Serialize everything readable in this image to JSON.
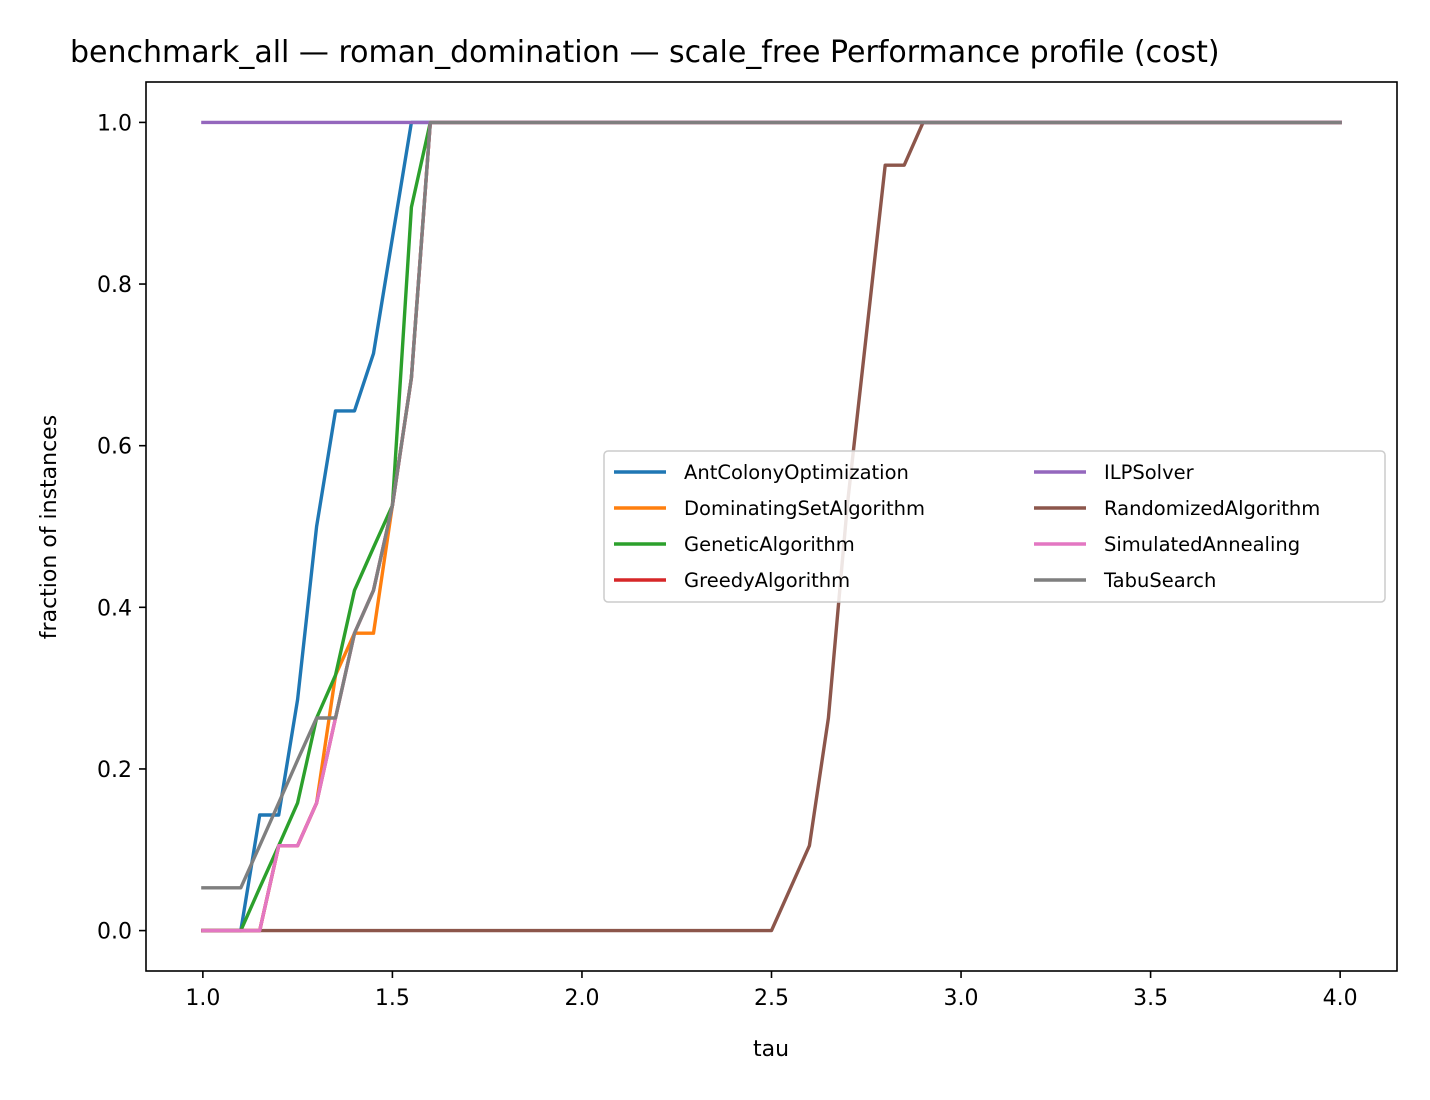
{
  "chart_data": {
    "type": "line",
    "title": "benchmark_all — roman_domination — scale_free Performance profile (cost)",
    "xlabel": "tau",
    "ylabel": "fraction of instances",
    "xlim": [
      0.85,
      4.15
    ],
    "ylim": [
      -0.05,
      1.05
    ],
    "xticks": [
      "1.0",
      "1.5",
      "2.0",
      "2.5",
      "3.0",
      "3.5",
      "4.0"
    ],
    "yticks": [
      "0.0",
      "0.2",
      "0.4",
      "0.6",
      "0.8",
      "1.0"
    ],
    "grid": false,
    "legend_position": "center-right",
    "legend_columns": 2,
    "series": [
      {
        "name": "AntColonyOptimization",
        "color": "#1f77b4",
        "x": [
          1.0,
          1.1,
          1.15,
          1.2,
          1.25,
          1.3,
          1.35,
          1.4,
          1.45,
          1.5,
          1.55,
          4.0
        ],
        "y": [
          0.0,
          0.0,
          0.143,
          0.143,
          0.286,
          0.5,
          0.643,
          0.643,
          0.714,
          0.857,
          1.0,
          1.0
        ]
      },
      {
        "name": "DominatingSetAlgorithm",
        "color": "#ff7f0e",
        "x": [
          1.0,
          1.15,
          1.2,
          1.25,
          1.3,
          1.35,
          1.4,
          1.45,
          1.5,
          1.55,
          1.6,
          4.0
        ],
        "y": [
          0.0,
          0.0,
          0.105,
          0.105,
          0.158,
          0.316,
          0.368,
          0.368,
          0.526,
          0.684,
          1.0,
          1.0
        ]
      },
      {
        "name": "GeneticAlgorithm",
        "color": "#2ca02c",
        "x": [
          1.0,
          1.1,
          1.15,
          1.2,
          1.25,
          1.3,
          1.35,
          1.4,
          1.45,
          1.5,
          1.55,
          1.6,
          4.0
        ],
        "y": [
          0.0,
          0.0,
          0.053,
          0.105,
          0.158,
          0.263,
          0.316,
          0.421,
          0.474,
          0.526,
          0.895,
          1.0,
          1.0
        ]
      },
      {
        "name": "GreedyAlgorithm",
        "color": "#d62728",
        "x": [
          1.0,
          1.15,
          1.2,
          1.25,
          1.3,
          1.35,
          1.4,
          1.45,
          1.5,
          1.55,
          1.6,
          4.0
        ],
        "y": [
          0.0,
          0.0,
          0.105,
          0.105,
          0.158,
          0.263,
          0.368,
          0.421,
          0.526,
          0.684,
          1.0,
          1.0
        ]
      },
      {
        "name": "ILPSolver",
        "color": "#9467bd",
        "x": [
          1.0,
          4.0
        ],
        "y": [
          1.0,
          1.0
        ]
      },
      {
        "name": "RandomizedAlgorithm",
        "color": "#8c564b",
        "x": [
          1.0,
          2.5,
          2.6,
          2.65,
          2.7,
          2.75,
          2.8,
          2.85,
          2.9,
          4.0
        ],
        "y": [
          0.0,
          0.0,
          0.105,
          0.263,
          0.526,
          0.737,
          0.947,
          0.947,
          1.0,
          1.0
        ]
      },
      {
        "name": "SimulatedAnnealing",
        "color": "#e377c2",
        "x": [
          1.0,
          1.15,
          1.2,
          1.25,
          1.3,
          1.35,
          1.4,
          1.45,
          1.5,
          1.55,
          1.6,
          4.0
        ],
        "y": [
          0.0,
          0.0,
          0.105,
          0.105,
          0.158,
          0.263,
          0.368,
          0.421,
          0.526,
          0.684,
          1.0,
          1.0
        ]
      },
      {
        "name": "TabuSearch",
        "color": "#7f7f7f",
        "x": [
          1.0,
          1.1,
          1.15,
          1.2,
          1.25,
          1.3,
          1.35,
          1.4,
          1.45,
          1.5,
          1.55,
          1.6,
          4.0
        ],
        "y": [
          0.053,
          0.053,
          0.105,
          0.158,
          0.211,
          0.263,
          0.263,
          0.368,
          0.421,
          0.526,
          0.684,
          1.0,
          1.0
        ]
      }
    ]
  }
}
